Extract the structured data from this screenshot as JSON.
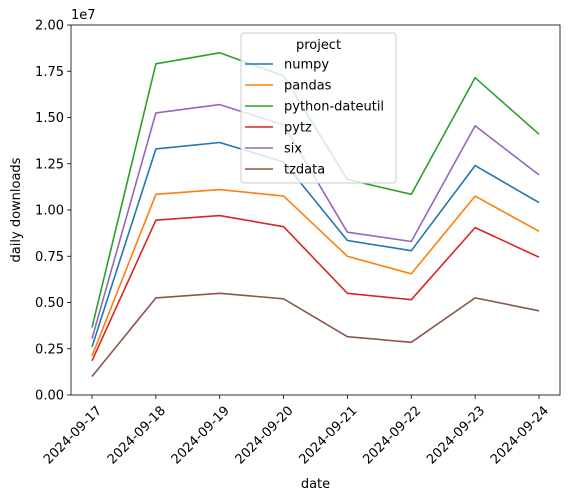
{
  "chart_data": {
    "type": "line",
    "xlabel": "date",
    "ylabel": "daily downloads",
    "offset_text": "1e7",
    "x": [
      "2024-09-17",
      "2024-09-18",
      "2024-09-19",
      "2024-09-20",
      "2024-09-21",
      "2024-09-22",
      "2024-09-23",
      "2024-09-24"
    ],
    "ylim": [
      0,
      20000000
    ],
    "yticks": [
      0,
      2500000,
      5000000,
      7500000,
      10000000,
      12500000,
      15000000,
      17500000,
      20000000
    ],
    "ytick_labels": [
      "0.00",
      "0.25",
      "0.50",
      "0.75",
      "1.00",
      "1.25",
      "1.50",
      "1.75",
      "2.00"
    ],
    "legend": {
      "title": "project",
      "position": "top-center"
    },
    "grid": false,
    "series": [
      {
        "name": "numpy",
        "color": "#1f77b4",
        "values": [
          2600000,
          13300000,
          13650000,
          12600000,
          8350000,
          7800000,
          12400000,
          10400000
        ]
      },
      {
        "name": "pandas",
        "color": "#ff7f0e",
        "values": [
          2100000,
          10850000,
          11100000,
          10750000,
          7500000,
          6550000,
          10750000,
          8850000
        ]
      },
      {
        "name": "python-dateutil",
        "color": "#2ca02c",
        "values": [
          3650000,
          17900000,
          18500000,
          17250000,
          11650000,
          10850000,
          17150000,
          14100000
        ]
      },
      {
        "name": "pytz",
        "color": "#d62728",
        "values": [
          1850000,
          9450000,
          9700000,
          9100000,
          5500000,
          5150000,
          9050000,
          7450000
        ]
      },
      {
        "name": "six",
        "color": "#9467bd",
        "values": [
          3050000,
          15250000,
          15700000,
          14600000,
          8800000,
          8300000,
          14550000,
          11900000
        ]
      },
      {
        "name": "tzdata",
        "color": "#8c564b",
        "values": [
          1000000,
          5250000,
          5500000,
          5200000,
          3150000,
          2850000,
          5250000,
          4550000
        ]
      }
    ]
  }
}
